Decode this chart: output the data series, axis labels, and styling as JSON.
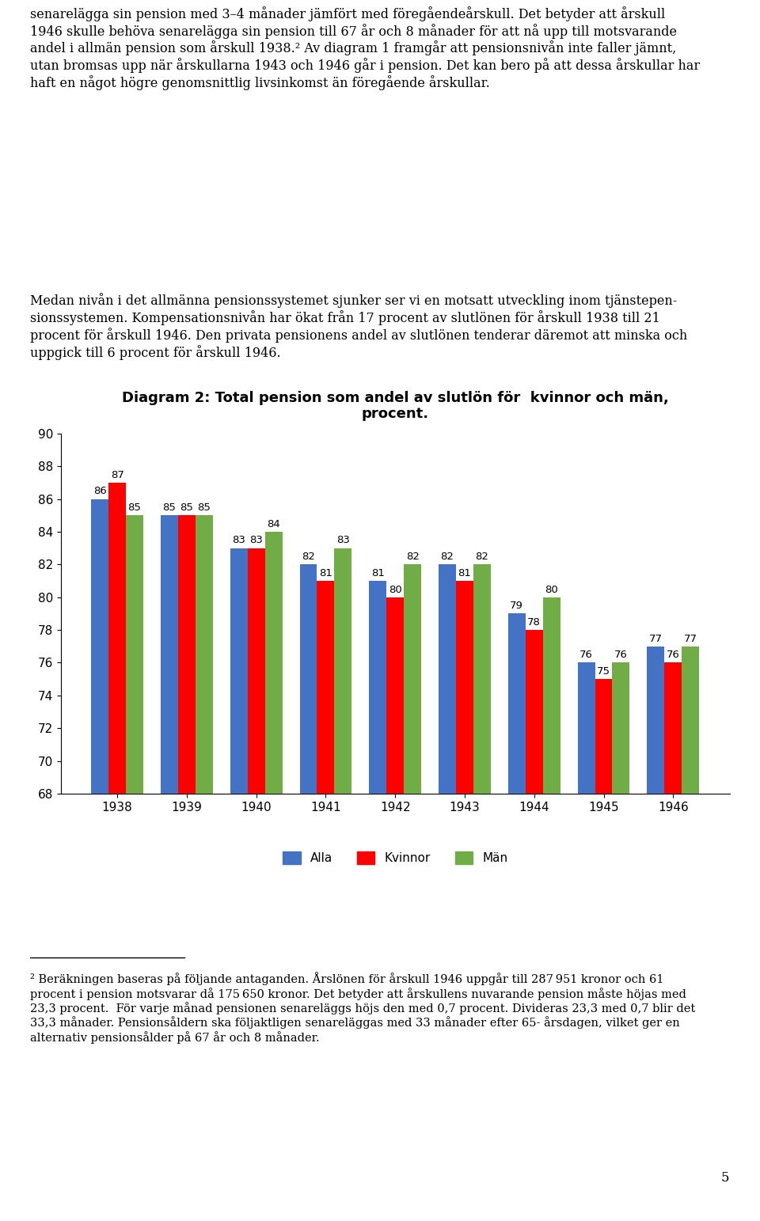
{
  "title_line1": "Diagram 2: Total pension som andel av slutlön för  kvinnor och män,",
  "title_line2": "procent.",
  "categories": [
    "1938",
    "1939",
    "1940",
    "1941",
    "1942",
    "1943",
    "1944",
    "1945",
    "1946"
  ],
  "alla": [
    86,
    85,
    83,
    82,
    81,
    82,
    79,
    76,
    77
  ],
  "kvinnor": [
    87,
    85,
    83,
    81,
    80,
    81,
    78,
    75,
    76
  ],
  "man": [
    85,
    85,
    84,
    83,
    82,
    82,
    80,
    76,
    77
  ],
  "bar_colors": {
    "alla": "#4472C4",
    "kvinnor": "#FF0000",
    "man": "#70AD47"
  },
  "ylim": [
    68,
    90
  ],
  "yticks": [
    68,
    70,
    72,
    74,
    76,
    78,
    80,
    82,
    84,
    86,
    88,
    90
  ],
  "legend_labels": [
    "Alla",
    "Kvinnor",
    "Män"
  ],
  "body_text_top": "senarelägga sin pension med 3–4 månader jämfört med föregåendeårskull. Det betyder att årskull\n1946 skulle behöva senarelägga sin pension till 67 år och 8 månader för att nå upp till motsvarande\nandel i allmän pension som årskull 1938.² Av diagram 1 framgår att pensionsnivån inte faller jämnt,\nutan bromsas upp när årskullarna 1943 och 1946 går i pension. Det kan bero på att dessa årskullar har\nhaft en något högre genomsnittlig livsinkomst än föregående årskullar.",
  "body_text_mid": "Medan nivån i det allmänna pensionssystemet sjunker ser vi en motsatt utveckling inom tjänstepen-\nsionssystemen. Kompensationsnivån har ökat från 17 procent av slutlönen för årskull 1938 till 21\nprocent för årskull 1946. Den privata pensionens andel av slutlönen tenderar däremot att minska och\nuppgick till 6 procent för årskull 1946.",
  "footnote_line": "² Beräkningen baseras på följande antaganden. Årslönen för årskull 1946 uppgår till 287 951 kronor och 61\nprocent i pension motsvarar då 175 650 kronor. Det betyder att årskullens nuvarande pension måste höjas med\n23,3 procent.  För varje månad pensionen senareläggs höjs den med 0,7 procent. Divideras 23,3 med 0,7 blir det\n33,3 månader. Pensionsåldern ska följaktligen senareläggas med 33 månader efter 65- årsdagen, vilket ger en\nalternativ pensionsålder på 67 år och 8 månader.",
  "page_number": "5",
  "background_color": "#FFFFFF",
  "text_color": "#000000",
  "bar_width": 0.25,
  "label_fontsize": 9.5,
  "title_fontsize": 13,
  "body_fontsize": 11.5,
  "footnote_fontsize": 10.5
}
